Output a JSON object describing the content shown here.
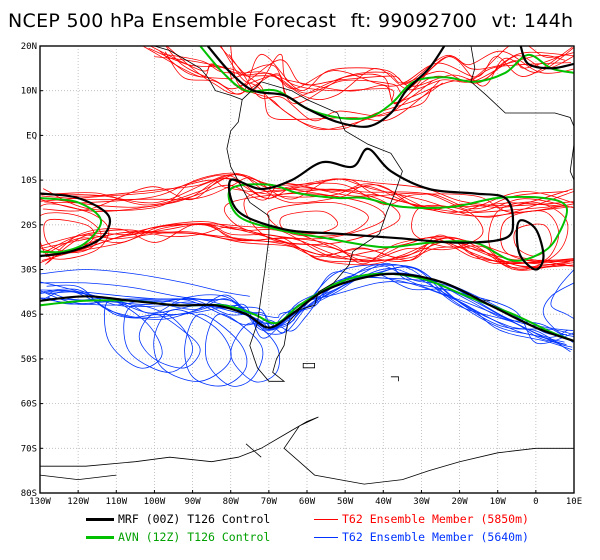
{
  "header": {
    "title": "NCEP 500 hPa Ensemble Forecast",
    "forecast_time": "ft: 99092700",
    "valid_time": "vt: 144h"
  },
  "map": {
    "latitude_labels": [
      "20N",
      "10N",
      "EQ",
      "10S",
      "20S",
      "30S",
      "40S",
      "50S",
      "60S",
      "70S",
      "80S"
    ],
    "longitude_labels": [
      "130W",
      "120W",
      "110W",
      "100W",
      "90W",
      "80W",
      "70W",
      "60W",
      "50W",
      "40W",
      "30W",
      "20W",
      "10W",
      "0",
      "10E"
    ],
    "colors": {
      "mrf": "#000000",
      "avn": "#00c000",
      "t62_5850": "#ff0000",
      "t62_5640": "#0033ff",
      "coast": "#000000"
    }
  },
  "legend": {
    "mrf": "MRF (00Z) T126 Control",
    "avn": "AVN (12Z) T126 Control",
    "t62_5850": "T62 Ensemble Member (5850m)",
    "t62_5640": "T62 Ensemble Member (5640m)"
  }
}
